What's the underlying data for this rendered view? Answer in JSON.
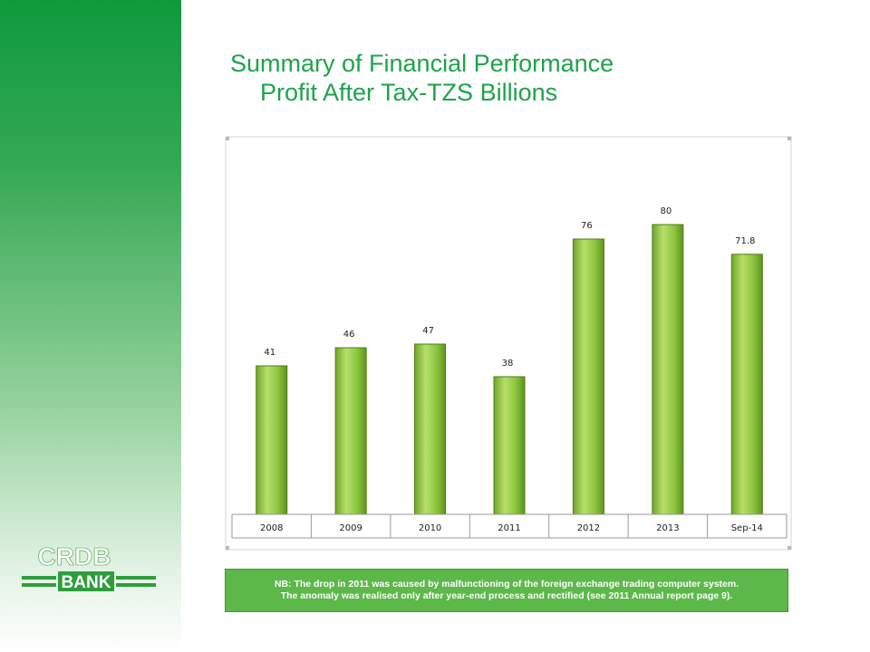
{
  "slide": {
    "title_line1": "Summary of Financial Performance",
    "title_line2": "Profit After Tax-TZS Billions"
  },
  "logo": {
    "brand_top": "CRDB",
    "brand_bottom": "BANK"
  },
  "note": {
    "line1": "NB: The drop in 2011 was caused by malfunctioning of the foreign exchange trading computer system.",
    "line2": "The anomaly was realised  only after year-end process and rectified (see 2011 Annual report page 9)."
  },
  "colors": {
    "sidebar_top": "#0e9a3c",
    "title": "#1ea34a",
    "bar_fill": "#8dc63f",
    "bar_edge": "#4f7d12",
    "note_bg": "#5db84a"
  },
  "chart_data": {
    "type": "bar",
    "categories": [
      "2008",
      "2009",
      "2010",
      "2011",
      "2012",
      "2013",
      "Sep-14"
    ],
    "values": [
      41,
      46,
      47,
      38,
      76,
      80,
      71.8
    ],
    "data_labels": [
      "41",
      "46",
      "47",
      "38",
      "76",
      "80",
      "71.8"
    ],
    "title": "",
    "xlabel": "",
    "ylabel": "",
    "ylim": [
      0,
      90
    ],
    "grid": false,
    "legend": "none"
  }
}
